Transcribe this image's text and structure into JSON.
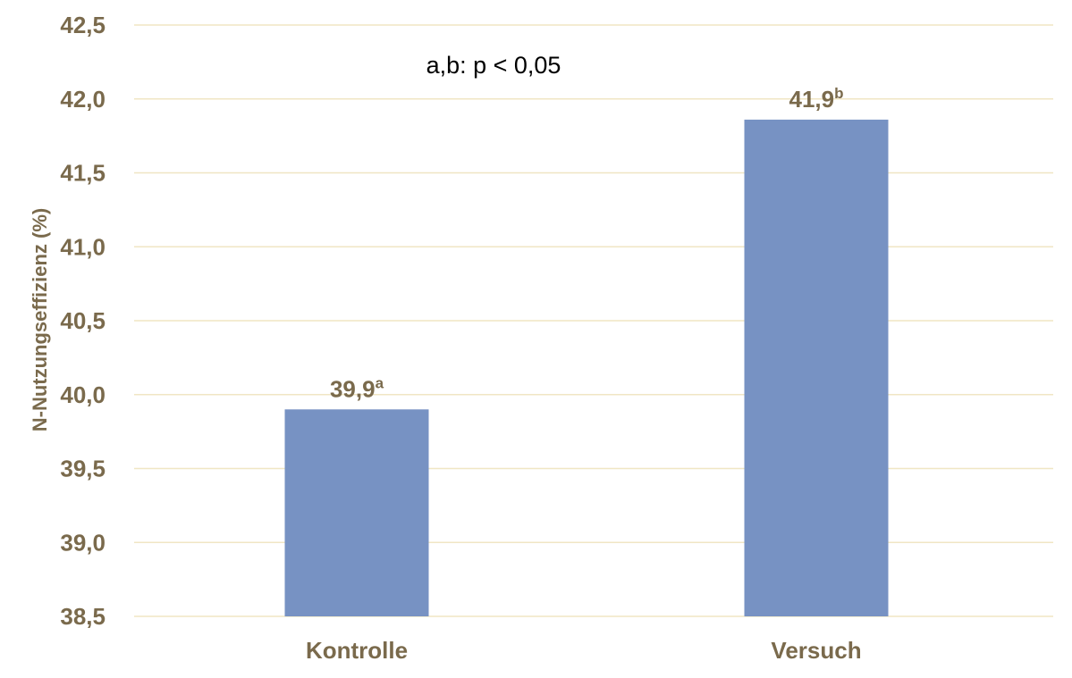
{
  "chart_data": {
    "type": "bar",
    "categories": [
      "Kontrolle",
      "Versuch"
    ],
    "values": [
      39.9,
      41.86
    ],
    "value_labels": [
      {
        "text": "39,9",
        "sup": "a"
      },
      {
        "text": "41,9",
        "sup": "b"
      }
    ],
    "ylabel": "N-Nutzungseffizienz (%)",
    "ylim": [
      38.5,
      42.5
    ],
    "yticks": [
      38.5,
      39.0,
      39.5,
      40.0,
      40.5,
      41.0,
      41.5,
      42.0,
      42.5
    ],
    "ytick_labels": [
      "38,5",
      "39,0",
      "39,5",
      "40,0",
      "40,5",
      "41,0",
      "41,5",
      "42,0",
      "42,5"
    ],
    "annotation": "a,b: p < 0,05",
    "grid": true,
    "colors": {
      "bar": "#7792c3",
      "gridline": "#f0e6c4",
      "text": "#7a6a4c",
      "annotation": "#000000"
    }
  }
}
